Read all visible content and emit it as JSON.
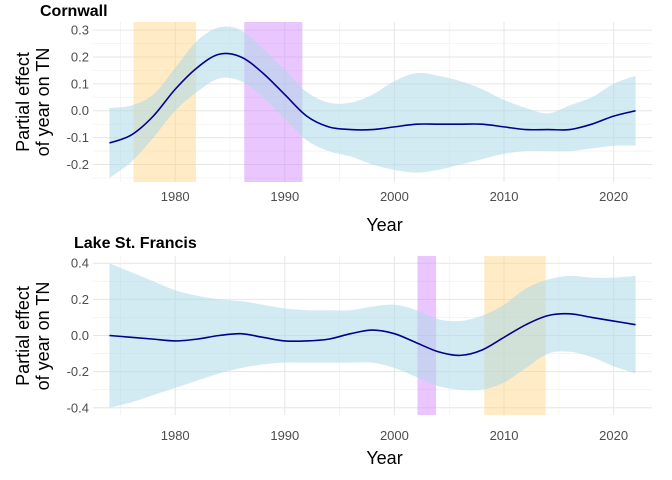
{
  "colors": {
    "ribbon": "#add8e6",
    "line": "#00008b",
    "highlight_orange": "#ffd27f",
    "highlight_purple": "#d080ff"
  },
  "chart_data": [
    {
      "type": "line",
      "title": "Cornwall",
      "xlabel": "Year",
      "ylabel": "Partial effect\nof year on TN",
      "ylabel_lines": [
        "Partial effect",
        "of year on TN"
      ],
      "xlim": [
        1972.5,
        2023.5
      ],
      "ylim": [
        -0.265,
        0.33
      ],
      "x_ticks": [
        1980,
        1990,
        2000,
        2010,
        2020
      ],
      "x_tick_labels": [
        "1980",
        "1990",
        "2000",
        "2010",
        "2020"
      ],
      "y_ticks": [
        -0.2,
        -0.1,
        0.0,
        0.1,
        0.2,
        0.3
      ],
      "y_tick_labels": [
        "-0.2",
        "-0.1",
        "0.0",
        "0.1",
        "0.2",
        "0.3"
      ],
      "grid": true,
      "highlight_bands": [
        {
          "from": 1976.2,
          "to": 1981.9,
          "color": "orange"
        },
        {
          "from": 1986.3,
          "to": 1991.6,
          "color": "purple"
        }
      ],
      "series": [
        {
          "x": [
            1974,
            1976,
            1978,
            1980,
            1982,
            1984,
            1986,
            1988,
            1990,
            1992,
            1994,
            1996,
            1998,
            2000,
            2002,
            2004,
            2006,
            2008,
            2010,
            2012,
            2014,
            2016,
            2018,
            2020,
            2022
          ],
          "y": [
            -0.12,
            -0.09,
            -0.02,
            0.08,
            0.16,
            0.21,
            0.2,
            0.14,
            0.06,
            -0.02,
            -0.06,
            -0.07,
            -0.07,
            -0.06,
            -0.05,
            -0.05,
            -0.05,
            -0.05,
            -0.06,
            -0.07,
            -0.07,
            -0.07,
            -0.05,
            -0.02,
            0.0
          ],
          "lower": [
            -0.25,
            -0.19,
            -0.1,
            0.0,
            0.07,
            0.12,
            0.11,
            0.05,
            -0.03,
            -0.11,
            -0.15,
            -0.17,
            -0.2,
            -0.22,
            -0.23,
            -0.22,
            -0.2,
            -0.18,
            -0.16,
            -0.15,
            -0.15,
            -0.15,
            -0.14,
            -0.13,
            -0.13
          ],
          "upper": [
            0.01,
            0.02,
            0.06,
            0.16,
            0.26,
            0.31,
            0.3,
            0.23,
            0.15,
            0.07,
            0.03,
            0.03,
            0.06,
            0.11,
            0.14,
            0.13,
            0.11,
            0.08,
            0.04,
            0.01,
            -0.01,
            0.02,
            0.05,
            0.1,
            0.13
          ]
        }
      ]
    },
    {
      "type": "line",
      "title": "Lake St. Francis",
      "xlabel": "Year",
      "ylabel": "Partial effect\nof year on TN",
      "ylabel_lines": [
        "Partial effect",
        "of year on TN"
      ],
      "xlim": [
        1972.5,
        2023.5
      ],
      "ylim": [
        -0.44,
        0.44
      ],
      "x_ticks": [
        1980,
        1990,
        2000,
        2010,
        2020
      ],
      "x_tick_labels": [
        "1980",
        "1990",
        "2000",
        "2010",
        "2020"
      ],
      "y_ticks": [
        -0.4,
        -0.2,
        0.0,
        0.2,
        0.4
      ],
      "y_tick_labels": [
        "-0.4",
        "-0.2",
        "0.0",
        "0.2",
        "0.4"
      ],
      "grid": true,
      "highlight_bands": [
        {
          "from": 2002.1,
          "to": 2003.8,
          "color": "purple"
        },
        {
          "from": 2008.2,
          "to": 2013.8,
          "color": "orange"
        }
      ],
      "series": [
        {
          "x": [
            1974,
            1976,
            1978,
            1980,
            1982,
            1984,
            1986,
            1988,
            1990,
            1992,
            1994,
            1996,
            1998,
            2000,
            2002,
            2004,
            2006,
            2008,
            2010,
            2012,
            2014,
            2016,
            2018,
            2020,
            2022
          ],
          "y": [
            0.0,
            -0.01,
            -0.02,
            -0.03,
            -0.02,
            0.0,
            0.01,
            -0.01,
            -0.03,
            -0.03,
            -0.02,
            0.01,
            0.03,
            0.01,
            -0.04,
            -0.09,
            -0.11,
            -0.08,
            -0.01,
            0.06,
            0.11,
            0.12,
            0.1,
            0.08,
            0.06
          ],
          "lower": [
            -0.4,
            -0.37,
            -0.33,
            -0.29,
            -0.25,
            -0.21,
            -0.18,
            -0.16,
            -0.15,
            -0.15,
            -0.15,
            -0.15,
            -0.15,
            -0.18,
            -0.23,
            -0.28,
            -0.3,
            -0.3,
            -0.26,
            -0.18,
            -0.1,
            -0.09,
            -0.12,
            -0.17,
            -0.21
          ],
          "upper": [
            0.4,
            0.35,
            0.3,
            0.25,
            0.22,
            0.2,
            0.19,
            0.17,
            0.15,
            0.14,
            0.14,
            0.14,
            0.16,
            0.17,
            0.14,
            0.09,
            0.08,
            0.11,
            0.17,
            0.26,
            0.31,
            0.33,
            0.32,
            0.32,
            0.33
          ]
        }
      ]
    }
  ]
}
